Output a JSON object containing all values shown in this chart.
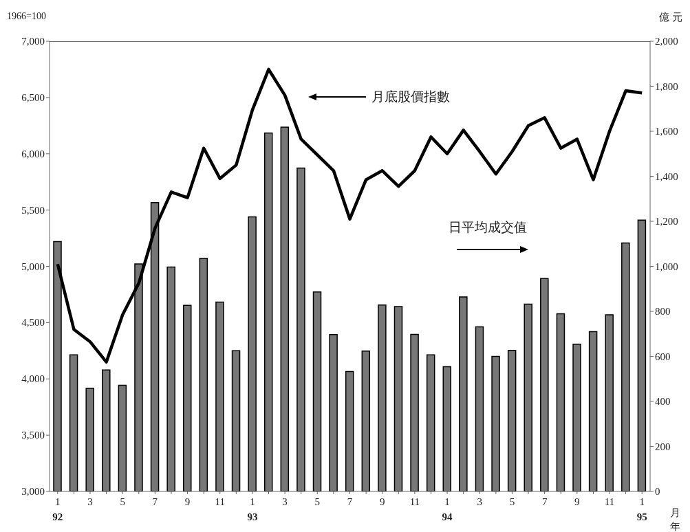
{
  "chart_data": {
    "type": "bar",
    "ylabel": "1966=100",
    "y2label": "億 元",
    "xlabel": "月年",
    "categories": [
      "1\n92",
      null,
      "3",
      null,
      "5",
      null,
      "7",
      null,
      "9",
      null,
      "11",
      null,
      "1\n93",
      null,
      "3",
      null,
      "5",
      null,
      "7",
      null,
      "9",
      null,
      "11",
      null,
      "1\n94",
      null,
      "3",
      null,
      "5",
      null,
      "7",
      null,
      "9",
      null,
      "11",
      null,
      "1\n95"
    ],
    "series": [
      {
        "axis": "y2",
        "color": "#777777",
        "values": [
          1110,
          607,
          458,
          540,
          472,
          1011,
          1283,
          997,
          827,
          1036,
          841,
          625,
          1220,
          1592,
          1618,
          1437,
          886,
          697,
          533,
          624,
          828,
          821,
          698,
          607,
          554,
          864,
          731,
          600,
          627,
          832,
          946,
          789,
          654,
          710,
          785,
          1104,
          1205
        ]
      },
      {
        "type": "line",
        "color": "#000000",
        "values": [
          5020,
          4440,
          4330,
          4150,
          4570,
          4850,
          5340,
          5660,
          5610,
          6050,
          5780,
          5900,
          6390,
          6750,
          6520,
          6130,
          5990,
          5850,
          5420,
          5770,
          5850,
          5710,
          5850,
          6150,
          6000,
          6210,
          6020,
          5820,
          6020,
          6250,
          6320,
          6050,
          6130,
          5770,
          6200,
          6560,
          6540
        ]
      }
    ],
    "ylim": [
      3000,
      7000
    ],
    "yticks": [
      {
        "value": 3000,
        "label": "3,000"
      },
      {
        "value": 3500,
        "label": "3,500"
      },
      {
        "value": 4000,
        "label": "4,000"
      },
      {
        "value": 4500,
        "label": "4,500"
      },
      {
        "value": 5000,
        "label": "5,000"
      },
      {
        "value": 5500,
        "label": "5,500"
      },
      {
        "value": 6000,
        "label": "6,000"
      },
      {
        "value": 6500,
        "label": "6,500"
      },
      {
        "value": 7000,
        "label": "7,000"
      }
    ],
    "y2lim": [
      0,
      2000
    ],
    "y2ticks": [
      0,
      200,
      400,
      600,
      800,
      {
        "value": 1000,
        "label": "1,000"
      },
      {
        "value": 1200,
        "label": "1,200"
      },
      {
        "value": 1400,
        "label": "1,400"
      },
      {
        "value": 1600,
        "label": "1,600"
      },
      {
        "value": 1800,
        "label": "1,800"
      },
      {
        "value": 2000,
        "label": "2,000"
      }
    ],
    "annotations": [
      "月底股價指數",
      "日平均成交值"
    ],
    "grid": false,
    "legend": false,
    "marker": "none",
    "line_style": "solid"
  }
}
